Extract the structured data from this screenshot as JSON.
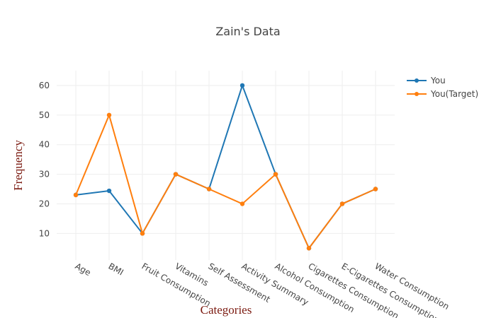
{
  "chart_data": {
    "type": "line",
    "title": "Zain's Data",
    "xlabel": "Categories",
    "ylabel": "Frequency",
    "categories": [
      "Age",
      "BMI",
      "Fruit Consumption",
      "Vitamins",
      "Self Assessment",
      "Activity Summary",
      "Alcohol Consumption",
      "Cigarettes Consumption",
      "E-Cigarettes Consumption",
      "Water Consumption"
    ],
    "series": [
      {
        "name": "You",
        "color": "#1f77b4",
        "values": [
          23,
          24.4,
          10,
          30,
          25,
          60,
          30,
          5,
          20,
          25
        ]
      },
      {
        "name": "You(Target)",
        "color": "#ff7f0e",
        "values": [
          23,
          50,
          10,
          30,
          25,
          20,
          30,
          5,
          20,
          25
        ]
      }
    ],
    "y_ticks": [
      10,
      20,
      30,
      40,
      50,
      60
    ],
    "ylim": [
      1,
      65
    ],
    "grid": true,
    "legend_position": "top-right",
    "colors": {
      "axis_title": "#7b1a10",
      "title": "#444444",
      "tick": "#444444",
      "grid": "#eeeeee"
    }
  }
}
